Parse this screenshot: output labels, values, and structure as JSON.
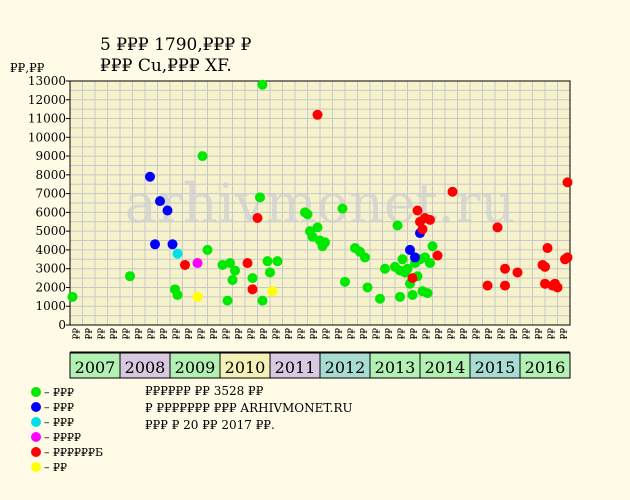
{
  "chart_data": {
    "type": "scatter",
    "title": "5 ₽₽₽ 1790,₽₽₽ ₽",
    "subtitle": "₽₽₽ Cu,₽₽₽ XF.",
    "ylabel": "₽₽,₽₽",
    "ylim": [
      0,
      13000
    ],
    "yticks": [
      0,
      1000,
      2000,
      3000,
      4000,
      5000,
      6000,
      7000,
      8000,
      9000,
      10000,
      11000,
      12000,
      13000
    ],
    "grid": true,
    "watermark": "arhivmonet.ru",
    "years": [
      "2007",
      "2008",
      "2009",
      "2010",
      "2011",
      "2012",
      "2013",
      "2014",
      "2015",
      "2016"
    ],
    "year_colors": [
      "#b3f0b3",
      "#d9c9e0",
      "#b3f0b3",
      "#f5f0b8",
      "#d9c9e0",
      "#a8dcd2",
      "#b3f0b3",
      "#b3f0b3",
      "#a8dcd2",
      "#b3f0b3"
    ],
    "quarters_per_year": 4,
    "quarter_labels": [
      "₽₽",
      "₽₽",
      "₽₽",
      "₽₽"
    ],
    "series": [
      {
        "name": "– ₽₽₽",
        "color": "#00e800",
        "points": [
          {
            "x": 2007.05,
            "y": 1500
          },
          {
            "x": 2008.2,
            "y": 2600
          },
          {
            "x": 2009.1,
            "y": 1900
          },
          {
            "x": 2009.15,
            "y": 1600
          },
          {
            "x": 2009.65,
            "y": 9000
          },
          {
            "x": 2009.75,
            "y": 4000
          },
          {
            "x": 2010.05,
            "y": 3200
          },
          {
            "x": 2010.15,
            "y": 1300
          },
          {
            "x": 2010.2,
            "y": 3300
          },
          {
            "x": 2010.25,
            "y": 2400
          },
          {
            "x": 2010.3,
            "y": 2900
          },
          {
            "x": 2010.65,
            "y": 2500
          },
          {
            "x": 2010.8,
            "y": 6800
          },
          {
            "x": 2010.85,
            "y": 1300
          },
          {
            "x": 2010.85,
            "y": 12800
          },
          {
            "x": 2010.95,
            "y": 3400
          },
          {
            "x": 2011.0,
            "y": 2800
          },
          {
            "x": 2011.15,
            "y": 3400
          },
          {
            "x": 2011.7,
            "y": 6000
          },
          {
            "x": 2011.75,
            "y": 5900
          },
          {
            "x": 2011.8,
            "y": 5000
          },
          {
            "x": 2011.85,
            "y": 4700
          },
          {
            "x": 2011.95,
            "y": 5200
          },
          {
            "x": 2012.0,
            "y": 4500
          },
          {
            "x": 2012.05,
            "y": 4200
          },
          {
            "x": 2012.1,
            "y": 4400
          },
          {
            "x": 2012.45,
            "y": 6200
          },
          {
            "x": 2012.5,
            "y": 2300
          },
          {
            "x": 2012.7,
            "y": 4100
          },
          {
            "x": 2012.8,
            "y": 3900
          },
          {
            "x": 2012.9,
            "y": 3600
          },
          {
            "x": 2012.95,
            "y": 2000
          },
          {
            "x": 2013.2,
            "y": 1400
          },
          {
            "x": 2013.3,
            "y": 3000
          },
          {
            "x": 2013.5,
            "y": 3100
          },
          {
            "x": 2013.55,
            "y": 5300
          },
          {
            "x": 2013.6,
            "y": 1500
          },
          {
            "x": 2013.6,
            "y": 2900
          },
          {
            "x": 2013.65,
            "y": 3500
          },
          {
            "x": 2013.7,
            "y": 2800
          },
          {
            "x": 2013.75,
            "y": 3000
          },
          {
            "x": 2013.8,
            "y": 2200
          },
          {
            "x": 2013.85,
            "y": 1600
          },
          {
            "x": 2013.9,
            "y": 3300
          },
          {
            "x": 2013.95,
            "y": 2600
          },
          {
            "x": 2014.0,
            "y": 3500
          },
          {
            "x": 2014.05,
            "y": 1800
          },
          {
            "x": 2014.1,
            "y": 3600
          },
          {
            "x": 2014.15,
            "y": 1700
          },
          {
            "x": 2014.2,
            "y": 3300
          },
          {
            "x": 2014.25,
            "y": 4200
          }
        ]
      },
      {
        "name": "– ₽₽₽",
        "color": "#0000ff",
        "points": [
          {
            "x": 2008.6,
            "y": 7900
          },
          {
            "x": 2008.7,
            "y": 4300
          },
          {
            "x": 2008.8,
            "y": 6600
          },
          {
            "x": 2008.95,
            "y": 6100
          },
          {
            "x": 2009.05,
            "y": 4300
          },
          {
            "x": 2013.8,
            "y": 4000
          },
          {
            "x": 2013.9,
            "y": 3600
          },
          {
            "x": 2014.0,
            "y": 4900
          }
        ]
      },
      {
        "name": "– ₽₽₽",
        "color": "#00e0e8",
        "points": [
          {
            "x": 2009.15,
            "y": 3800
          }
        ]
      },
      {
        "name": "– ₽₽₽₽",
        "color": "#ff00ff",
        "points": [
          {
            "x": 2009.55,
            "y": 3300
          }
        ]
      },
      {
        "name": "– ₽₽₽₽₽₽Б",
        "color": "#ff0000",
        "points": [
          {
            "x": 2009.3,
            "y": 3200
          },
          {
            "x": 2010.55,
            "y": 3300
          },
          {
            "x": 2010.65,
            "y": 1900
          },
          {
            "x": 2010.75,
            "y": 5700
          },
          {
            "x": 2011.95,
            "y": 11200
          },
          {
            "x": 2013.85,
            "y": 2500
          },
          {
            "x": 2013.95,
            "y": 6100
          },
          {
            "x": 2014.0,
            "y": 5500
          },
          {
            "x": 2014.05,
            "y": 5100
          },
          {
            "x": 2014.1,
            "y": 5700
          },
          {
            "x": 2014.2,
            "y": 5600
          },
          {
            "x": 2014.35,
            "y": 3700
          },
          {
            "x": 2014.65,
            "y": 7100
          },
          {
            "x": 2015.35,
            "y": 2100
          },
          {
            "x": 2015.55,
            "y": 5200
          },
          {
            "x": 2015.7,
            "y": 2100
          },
          {
            "x": 2015.7,
            "y": 3000
          },
          {
            "x": 2015.95,
            "y": 2800
          },
          {
            "x": 2016.45,
            "y": 3200
          },
          {
            "x": 2016.5,
            "y": 3100
          },
          {
            "x": 2016.5,
            "y": 2200
          },
          {
            "x": 2016.55,
            "y": 4100
          },
          {
            "x": 2016.65,
            "y": 2100
          },
          {
            "x": 2016.7,
            "y": 2200
          },
          {
            "x": 2016.75,
            "y": 2000
          },
          {
            "x": 2016.9,
            "y": 3500
          },
          {
            "x": 2016.95,
            "y": 7600
          },
          {
            "x": 2016.95,
            "y": 3600
          }
        ]
      },
      {
        "name": "– ₽₽",
        "color": "#ffff00",
        "points": [
          {
            "x": 2009.55,
            "y": 1500
          },
          {
            "x": 2011.05,
            "y": 1800
          }
        ]
      }
    ]
  },
  "notes": [
    "₽₽₽₽₽₽ ₽₽ 3528 ₽₽",
    "₽ ₽₽₽₽₽₽₽ ₽₽₽ ARHIVMONET.RU",
    "₽₽₽ ₽ 20 ₽₽ 2017 ₽₽."
  ]
}
